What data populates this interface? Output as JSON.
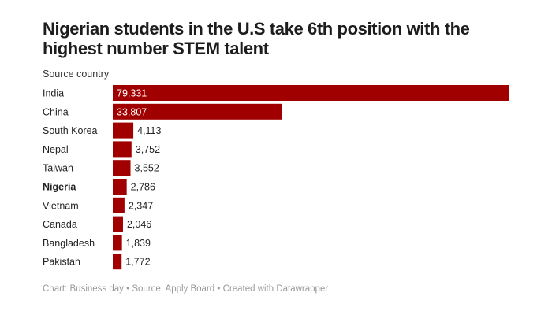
{
  "chart_data": {
    "type": "bar",
    "orientation": "horizontal",
    "title": "Nigerian students in the U.S take 6th position with the highest number STEM talent",
    "column_header": "Source country",
    "categories": [
      "India",
      "China",
      "South Korea",
      "Nepal",
      "Taiwan",
      "Nigeria",
      "Vietnam",
      "Canada",
      "Bangladesh",
      "Pakistan"
    ],
    "values": [
      79331,
      33807,
      4113,
      3752,
      3552,
      2786,
      2347,
      2046,
      1839,
      1772
    ],
    "value_labels": [
      "79,331",
      "33,807",
      "4,113",
      "3,752",
      "3,552",
      "2,786",
      "2,347",
      "2,046",
      "1,839",
      "1,772"
    ],
    "highlighted_category": "Nigeria",
    "bar_color": "#a00000",
    "xlim": [
      0,
      79331
    ],
    "grid": false,
    "footer": "Chart: Business day  • Source: Apply Board • Created with Datawrapper"
  }
}
